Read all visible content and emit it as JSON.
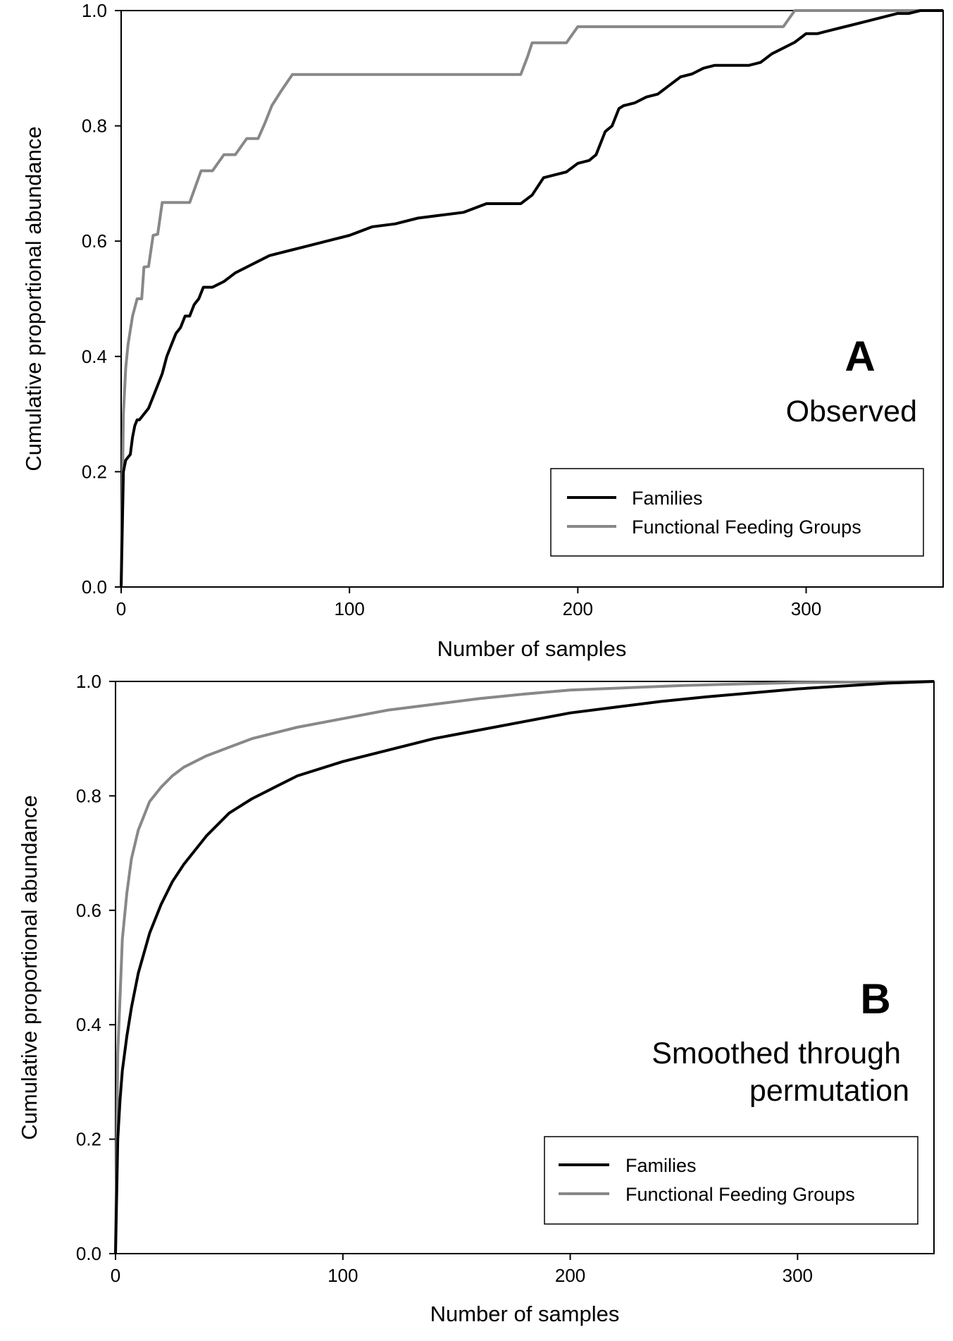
{
  "chart_data": [
    {
      "type": "line",
      "panel_letter": "A",
      "caption": [
        "Observed"
      ],
      "xlabel": "Number of samples",
      "ylabel": "Cumulative proportional abundance",
      "xlim": [
        0,
        360
      ],
      "ylim": [
        0,
        1.0
      ],
      "xticks": [
        0,
        100,
        200,
        300
      ],
      "yticks": [
        0.0,
        0.2,
        0.4,
        0.6,
        0.8,
        1.0
      ],
      "xtick_labels": [
        "0",
        "100",
        "200",
        "300"
      ],
      "ytick_labels": [
        "0.0",
        "0.2",
        "0.4",
        "0.6",
        "0.8",
        "1.0"
      ],
      "grid": false,
      "legend_position": "lower-right",
      "series": [
        {
          "name": "Families",
          "color": "#000000",
          "x": [
            0,
            1,
            2,
            4,
            5,
            6,
            7,
            8,
            10,
            12,
            14,
            16,
            18,
            20,
            22,
            24,
            26,
            28,
            30,
            32,
            34,
            36,
            40,
            45,
            50,
            55,
            60,
            65,
            70,
            75,
            80,
            90,
            100,
            110,
            120,
            130,
            140,
            150,
            160,
            170,
            175,
            180,
            185,
            190,
            195,
            200,
            205,
            208,
            212,
            215,
            218,
            220,
            225,
            230,
            235,
            240,
            245,
            250,
            255,
            260,
            265,
            270,
            275,
            280,
            285,
            290,
            295,
            300,
            305,
            310,
            315,
            320,
            325,
            330,
            335,
            340,
            345,
            350,
            360
          ],
          "y": [
            0.0,
            0.2,
            0.22,
            0.23,
            0.26,
            0.28,
            0.29,
            0.29,
            0.3,
            0.31,
            0.33,
            0.35,
            0.37,
            0.4,
            0.42,
            0.44,
            0.45,
            0.47,
            0.47,
            0.49,
            0.5,
            0.52,
            0.52,
            0.53,
            0.545,
            0.555,
            0.565,
            0.575,
            0.58,
            0.585,
            0.59,
            0.6,
            0.61,
            0.625,
            0.63,
            0.64,
            0.645,
            0.65,
            0.665,
            0.665,
            0.665,
            0.68,
            0.71,
            0.715,
            0.72,
            0.735,
            0.74,
            0.75,
            0.79,
            0.8,
            0.83,
            0.835,
            0.84,
            0.85,
            0.855,
            0.87,
            0.885,
            0.89,
            0.9,
            0.905,
            0.905,
            0.905,
            0.905,
            0.91,
            0.925,
            0.935,
            0.945,
            0.96,
            0.96,
            0.965,
            0.97,
            0.975,
            0.98,
            0.985,
            0.99,
            0.995,
            0.995,
            1.0,
            1.0
          ]
        },
        {
          "name": "Functional Feeding Groups",
          "color": "#888888",
          "x": [
            0,
            1,
            2,
            3,
            5,
            7,
            9,
            10,
            12,
            14,
            16,
            18,
            20,
            25,
            30,
            35,
            40,
            45,
            50,
            55,
            60,
            63,
            66,
            70,
            75,
            100,
            150,
            175,
            178,
            180,
            185,
            190,
            195,
            200,
            250,
            290,
            295,
            360
          ],
          "y": [
            0.0,
            0.3,
            0.38,
            0.42,
            0.47,
            0.5,
            0.5,
            0.555,
            0.556,
            0.61,
            0.612,
            0.667,
            0.667,
            0.667,
            0.667,
            0.722,
            0.722,
            0.75,
            0.75,
            0.778,
            0.778,
            0.805,
            0.835,
            0.86,
            0.889,
            0.889,
            0.889,
            0.889,
            0.92,
            0.944,
            0.944,
            0.944,
            0.944,
            0.972,
            0.972,
            0.972,
            1.0,
            1.0
          ]
        }
      ]
    },
    {
      "type": "line",
      "panel_letter": "B",
      "caption": [
        "Smoothed through",
        "permutation"
      ],
      "xlabel": "Number of samples",
      "ylabel": "Cumulative proportional abundance",
      "xlim": [
        0,
        360
      ],
      "ylim": [
        0,
        1.0
      ],
      "xticks": [
        0,
        100,
        200,
        300
      ],
      "yticks": [
        0.0,
        0.2,
        0.4,
        0.6,
        0.8,
        1.0
      ],
      "xtick_labels": [
        "0",
        "100",
        "200",
        "300"
      ],
      "ytick_labels": [
        "0.0",
        "0.2",
        "0.4",
        "0.6",
        "0.8",
        "1.0"
      ],
      "grid": false,
      "legend_position": "lower-right",
      "series": [
        {
          "name": "Families",
          "color": "#000000",
          "x": [
            0,
            1,
            2,
            3,
            5,
            7,
            10,
            15,
            20,
            25,
            30,
            40,
            50,
            60,
            70,
            80,
            100,
            120,
            140,
            160,
            180,
            200,
            220,
            240,
            260,
            280,
            300,
            320,
            340,
            360
          ],
          "y": [
            0.0,
            0.2,
            0.27,
            0.32,
            0.38,
            0.43,
            0.49,
            0.56,
            0.61,
            0.65,
            0.68,
            0.73,
            0.77,
            0.795,
            0.815,
            0.835,
            0.86,
            0.88,
            0.9,
            0.915,
            0.93,
            0.945,
            0.955,
            0.965,
            0.973,
            0.98,
            0.987,
            0.992,
            0.997,
            1.0
          ]
        },
        {
          "name": "Functional Feeding Groups",
          "color": "#888888",
          "x": [
            0,
            1,
            2,
            3,
            5,
            7,
            10,
            15,
            20,
            25,
            30,
            40,
            50,
            60,
            70,
            80,
            100,
            120,
            140,
            160,
            180,
            200,
            250,
            300,
            360
          ],
          "y": [
            0.0,
            0.35,
            0.45,
            0.55,
            0.63,
            0.69,
            0.74,
            0.79,
            0.815,
            0.835,
            0.85,
            0.87,
            0.885,
            0.9,
            0.91,
            0.92,
            0.935,
            0.95,
            0.96,
            0.97,
            0.978,
            0.985,
            0.993,
            0.998,
            1.0
          ]
        }
      ]
    }
  ]
}
